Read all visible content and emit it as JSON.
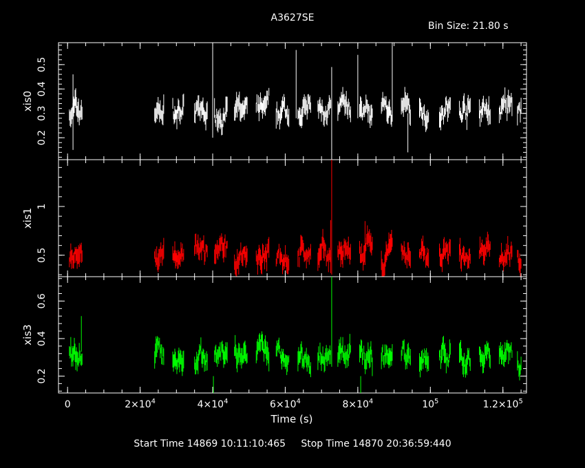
{
  "title": "A3627SE",
  "bin_size_label": "Bin Size: 21.80 s",
  "start_time_label": "Start Time 14869 10:11:10:465",
  "stop_time_label": "Stop Time 14870 20:36:59:440",
  "colors": {
    "background": "#000000",
    "axes": "#ffffff",
    "xis0": "#ffffff",
    "xis1": "#ff0000",
    "xis3": "#00ff00"
  },
  "chart_data": {
    "type": "line",
    "xlabel": "Time (s)",
    "xlim": [
      -2500,
      126500
    ],
    "x_ticks": [
      {
        "value": 0,
        "base": "0",
        "exp": ""
      },
      {
        "value": 20000,
        "base": "2×10",
        "exp": "4"
      },
      {
        "value": 40000,
        "base": "4×10",
        "exp": "4"
      },
      {
        "value": 60000,
        "base": "6×10",
        "exp": "4"
      },
      {
        "value": 80000,
        "base": "8×10",
        "exp": "4"
      },
      {
        "value": 100000,
        "base": "10",
        "exp": "5"
      },
      {
        "value": 120000,
        "base": "1.2×10",
        "exp": "5"
      }
    ],
    "segments": [
      [
        500,
        4000
      ],
      [
        24000,
        26500
      ],
      [
        29000,
        32000
      ],
      [
        35000,
        38500
      ],
      [
        40500,
        44000
      ],
      [
        46000,
        49500
      ],
      [
        52000,
        55500
      ],
      [
        57500,
        61000
      ],
      [
        63500,
        67000
      ],
      [
        69000,
        72500
      ],
      [
        74500,
        78000
      ],
      [
        80500,
        84000
      ],
      [
        86500,
        89500
      ],
      [
        92000,
        94500
      ],
      [
        97000,
        99500
      ],
      [
        102500,
        105500
      ],
      [
        108000,
        111000
      ],
      [
        113500,
        116500
      ],
      [
        119000,
        122500
      ],
      [
        124000,
        125000
      ]
    ],
    "series": [
      {
        "name": "xis0",
        "ylabel": "xis0",
        "color": "#ffffff",
        "ylim": [
          0.11,
          0.59
        ],
        "yticks": [
          0.2,
          0.3,
          0.4,
          0.5
        ],
        "mean": 0.31,
        "spikes": [
          [
            1500,
            0.15,
            0.46
          ],
          [
            40000,
            0.2,
            0.57
          ],
          [
            63000,
            0.28,
            0.56
          ],
          [
            72800,
            0.11,
            0.49
          ],
          [
            80000,
            0.28,
            0.54
          ],
          [
            89500,
            0.3,
            0.59
          ],
          [
            93800,
            0.14,
            0.3
          ]
        ]
      },
      {
        "name": "xis1",
        "ylabel": "xis1",
        "color": "#ff0000",
        "ylim": [
          0.28,
          1.48
        ],
        "yticks": [
          0.5,
          1
        ],
        "mean": 0.5,
        "spikes": [
          [
            72800,
            0.3,
            1.48
          ],
          [
            72500,
            0.45,
            0.86
          ],
          [
            82000,
            0.4,
            0.85
          ]
        ]
      },
      {
        "name": "xis3",
        "ylabel": "xis3",
        "color": "#00ff00",
        "ylim": [
          0.11,
          0.73
        ],
        "yticks": [
          0.2,
          0.4,
          0.6
        ],
        "mean": 0.31,
        "spikes": [
          [
            72800,
            0.25,
            0.73
          ],
          [
            40200,
            0.11,
            0.2
          ],
          [
            80800,
            0.11,
            0.2
          ],
          [
            3800,
            0.33,
            0.52
          ]
        ]
      }
    ]
  }
}
